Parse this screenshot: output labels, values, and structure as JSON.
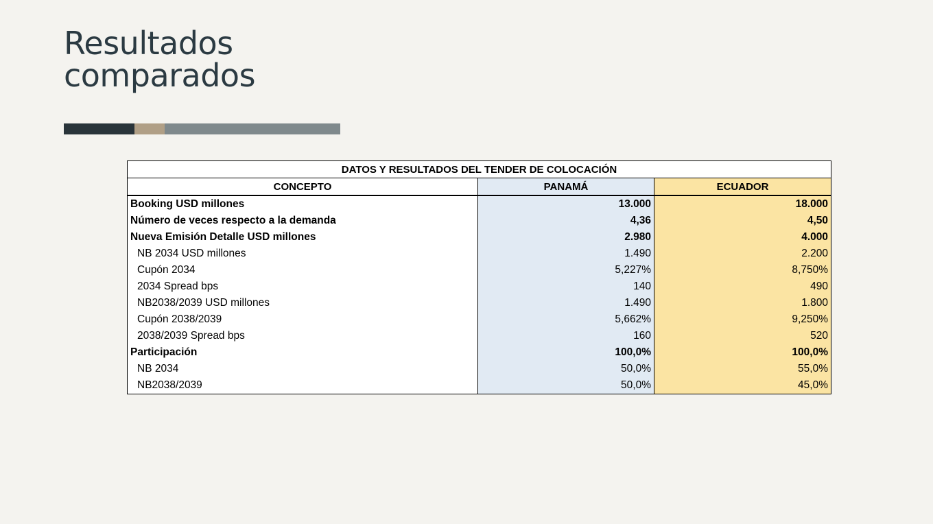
{
  "slide": {
    "title_line1": "Resultados",
    "title_line2": "comparados"
  },
  "table": {
    "caption": "DATOS Y RESULTADOS DEL TENDER DE COLOCACIÓN",
    "headers": [
      "CONCEPTO",
      "PANAMÁ",
      "ECUADOR"
    ],
    "rows": [
      {
        "concept": "Booking USD millones",
        "panama": "13.000",
        "ecuador": "18.000",
        "bold": true
      },
      {
        "concept": "Número de veces respecto a la demanda",
        "panama": "4,36",
        "ecuador": "4,50",
        "bold": true
      },
      {
        "concept": "Nueva Emisión Detalle USD millones",
        "panama": "2.980",
        "ecuador": "4.000",
        "bold": true
      },
      {
        "concept": "NB 2034 USD millones",
        "panama": "1.490",
        "ecuador": "2.200",
        "bold": false
      },
      {
        "concept": "Cupón 2034",
        "panama": "5,227%",
        "ecuador": "8,750%",
        "bold": false
      },
      {
        "concept": "2034 Spread bps",
        "panama": "140",
        "ecuador": "490",
        "bold": false
      },
      {
        "concept": "NB2038/2039 USD millones",
        "panama": "1.490",
        "ecuador": "1.800",
        "bold": false
      },
      {
        "concept": "Cupón 2038/2039",
        "panama": "5,662%",
        "ecuador": "9,250%",
        "bold": false
      },
      {
        "concept": "2038/2039 Spread bps",
        "panama": "160",
        "ecuador": "520",
        "bold": false
      },
      {
        "concept": "Participación",
        "panama": "100,0%",
        "ecuador": "100,0%",
        "bold": true
      },
      {
        "concept": "NB 2034",
        "panama": "50,0%",
        "ecuador": "55,0%",
        "bold": false
      },
      {
        "concept": "NB2038/2039",
        "panama": "50,0%",
        "ecuador": "45,0%",
        "bold": false
      }
    ]
  },
  "colors": {
    "background": "#f4f3ef",
    "title": "#2b3a42",
    "accent_dark": "#29343a",
    "accent_tan": "#b09f86",
    "accent_gray": "#7f898c",
    "panama_fill": "#e1eaf3",
    "ecuador_fill": "#fbe4a3"
  }
}
